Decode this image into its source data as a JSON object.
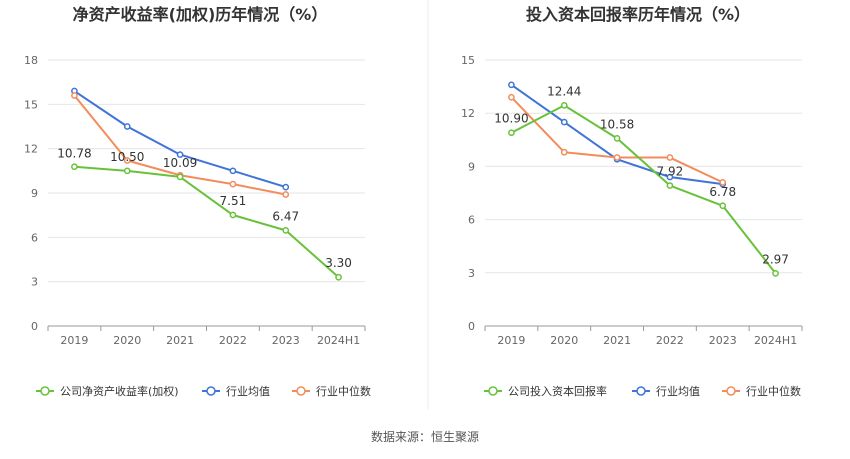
{
  "colors": {
    "company": "#67c23a",
    "industry_avg": "#3f73d8",
    "industry_median": "#f28c5c",
    "grid": "#e6e6e6",
    "axis_text": "#666666",
    "divider": "#eeeeee"
  },
  "source_text": "数据来源：恒生聚源",
  "chart_data": [
    {
      "type": "line",
      "title": "净资产收益率(加权)历年情况（%）",
      "categories": [
        "2019",
        "2020",
        "2021",
        "2022",
        "2023",
        "2024H1"
      ],
      "y_ticks": [
        "0",
        "3",
        "6",
        "9",
        "12",
        "15",
        "18"
      ],
      "ylim": [
        0,
        18
      ],
      "grid": true,
      "legend_position": "bottom",
      "series": [
        {
          "name": "公司净资产收益率(加权)",
          "color_key": "company",
          "values": [
            10.78,
            10.5,
            10.09,
            7.51,
            6.47,
            3.3
          ],
          "labels": [
            "10.78",
            "10.50",
            "10.09",
            "7.51",
            "6.47",
            "3.30"
          ]
        },
        {
          "name": "行业均值",
          "color_key": "industry_avg",
          "values": [
            15.9,
            13.5,
            11.6,
            10.5,
            9.4,
            null
          ]
        },
        {
          "name": "行业中位数",
          "color_key": "industry_median",
          "values": [
            15.6,
            11.2,
            10.2,
            9.6,
            8.9,
            null
          ]
        }
      ]
    },
    {
      "type": "line",
      "title": "投入资本回报率历年情况（%）",
      "categories": [
        "2019",
        "2020",
        "2021",
        "2022",
        "2023",
        "2024H1"
      ],
      "y_ticks": [
        "0",
        "3",
        "6",
        "9",
        "12",
        "15"
      ],
      "ylim": [
        0,
        15
      ],
      "grid": true,
      "legend_position": "bottom",
      "series": [
        {
          "name": "公司投入资本回报率",
          "color_key": "company",
          "values": [
            10.9,
            12.44,
            10.58,
            7.92,
            6.78,
            2.97
          ],
          "labels": [
            "10.90",
            "12.44",
            "10.58",
            "7.92",
            "6.78",
            "2.97"
          ]
        },
        {
          "name": "行业均值",
          "color_key": "industry_avg",
          "values": [
            13.6,
            11.5,
            9.4,
            8.4,
            8.0,
            null
          ]
        },
        {
          "name": "行业中位数",
          "color_key": "industry_median",
          "values": [
            12.9,
            9.8,
            9.5,
            9.5,
            8.1,
            null
          ]
        }
      ]
    }
  ]
}
